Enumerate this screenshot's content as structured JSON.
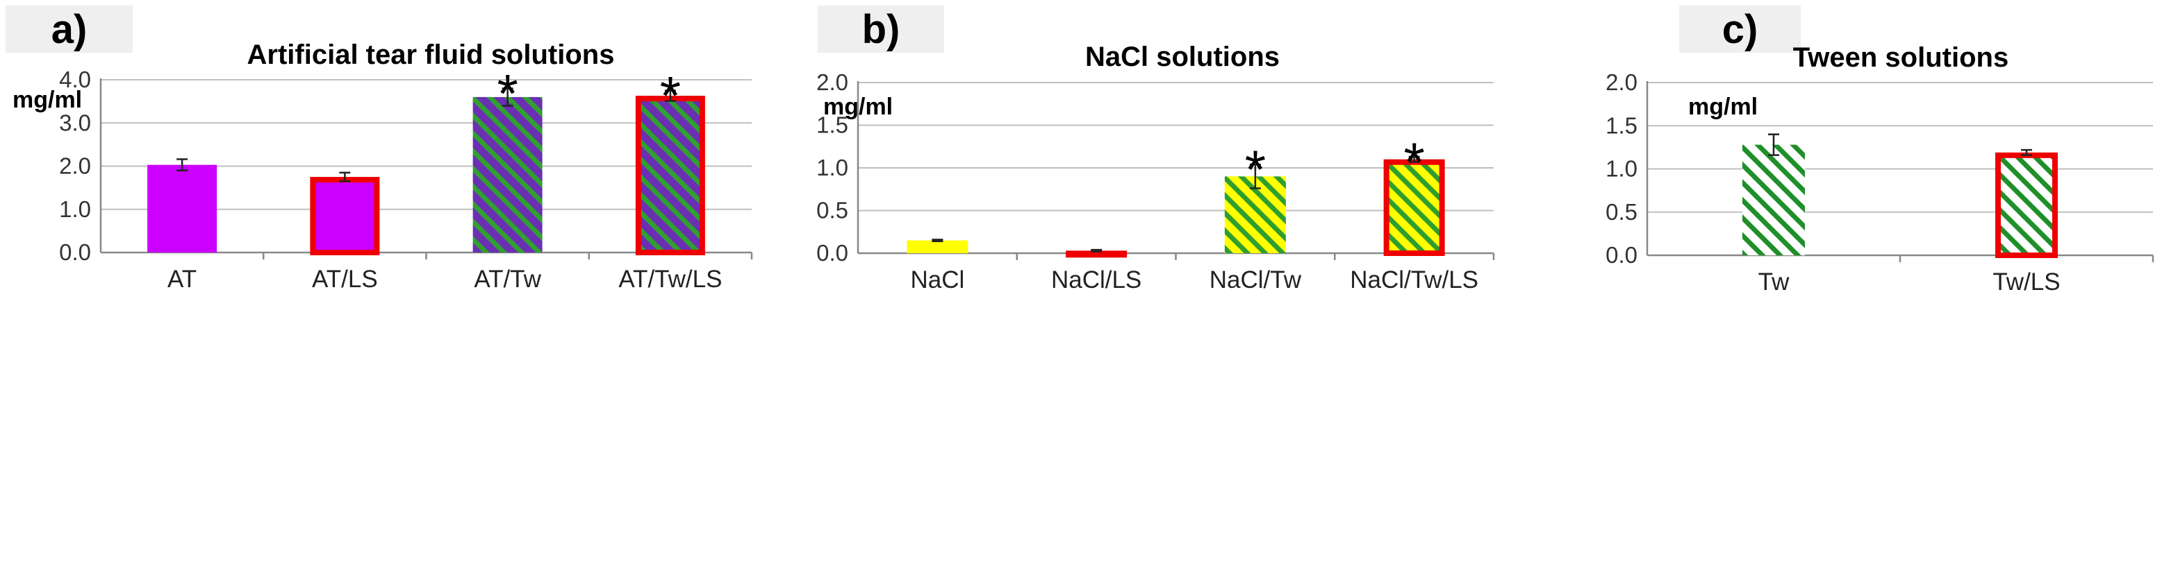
{
  "fill_styles": {
    "AT": {
      "color": "#cc00ff",
      "hatch": null
    },
    "AT-Tw": {
      "color": "#6b2fb3",
      "hatch": "#30a030"
    },
    "NaCl": {
      "color": "#ffff00",
      "hatch": null
    },
    "NaCl-Tw": {
      "color": "#ffff00",
      "hatch": "#2e9e2e"
    },
    "Tw": {
      "color": "#ffffff",
      "hatch": "#1f8f2a"
    },
    "ls_border": "#ee0000"
  },
  "chart_data": [
    {
      "panel": "a)",
      "type": "bar",
      "title": "Artificial tear fluid solutions",
      "ylabel": "mg/ml",
      "xlabel": "",
      "ylim": [
        0,
        4.0
      ],
      "yticks": [
        "0.0",
        "1.0",
        "2.0",
        "3.0",
        "4.0"
      ],
      "grid": true,
      "categories": [
        "AT",
        "AT/LS",
        "AT/Tw",
        "AT/Tw/LS"
      ],
      "values": [
        2.03,
        1.75,
        3.6,
        3.63
      ],
      "errors": [
        0.13,
        0.1,
        0.2,
        0.12
      ],
      "fill": [
        "AT",
        "AT",
        "AT-Tw",
        "AT-Tw"
      ],
      "ls_border": [
        false,
        true,
        false,
        true
      ],
      "markers": [
        "",
        "",
        "*",
        "*"
      ]
    },
    {
      "panel": "b)",
      "type": "bar",
      "title": "NaCl solutions",
      "ylabel": "mg/ml",
      "xlabel": "",
      "ylim": [
        0,
        2.0
      ],
      "yticks": [
        "0.0",
        "0.5",
        "1.0",
        "1.5",
        "2.0"
      ],
      "grid": true,
      "categories": [
        "NaCl",
        "NaCl/LS",
        "NaCl/Tw",
        "NaCl/Tw/LS"
      ],
      "values": [
        0.15,
        0.03,
        0.9,
        1.1
      ],
      "errors": [
        0.01,
        0.01,
        0.14,
        0.03
      ],
      "fill": [
        "NaCl",
        "NaCl",
        "NaCl-Tw",
        "NaCl-Tw"
      ],
      "ls_border": [
        false,
        true,
        false,
        true
      ],
      "markers": [
        "",
        "",
        "*",
        "*"
      ]
    },
    {
      "panel": "c)",
      "type": "bar",
      "title": "Tween solutions",
      "ylabel": "mg/ml",
      "xlabel": "",
      "ylim": [
        0,
        2.0
      ],
      "yticks": [
        "0.0",
        "0.5",
        "1.0",
        "1.5",
        "2.0"
      ],
      "grid": true,
      "categories": [
        "Tw",
        "Tw/LS"
      ],
      "values": [
        1.28,
        1.19
      ],
      "errors": [
        0.12,
        0.03
      ],
      "fill": [
        "Tw",
        "Tw"
      ],
      "ls_border": [
        false,
        true
      ],
      "markers": [
        "",
        ""
      ]
    }
  ]
}
